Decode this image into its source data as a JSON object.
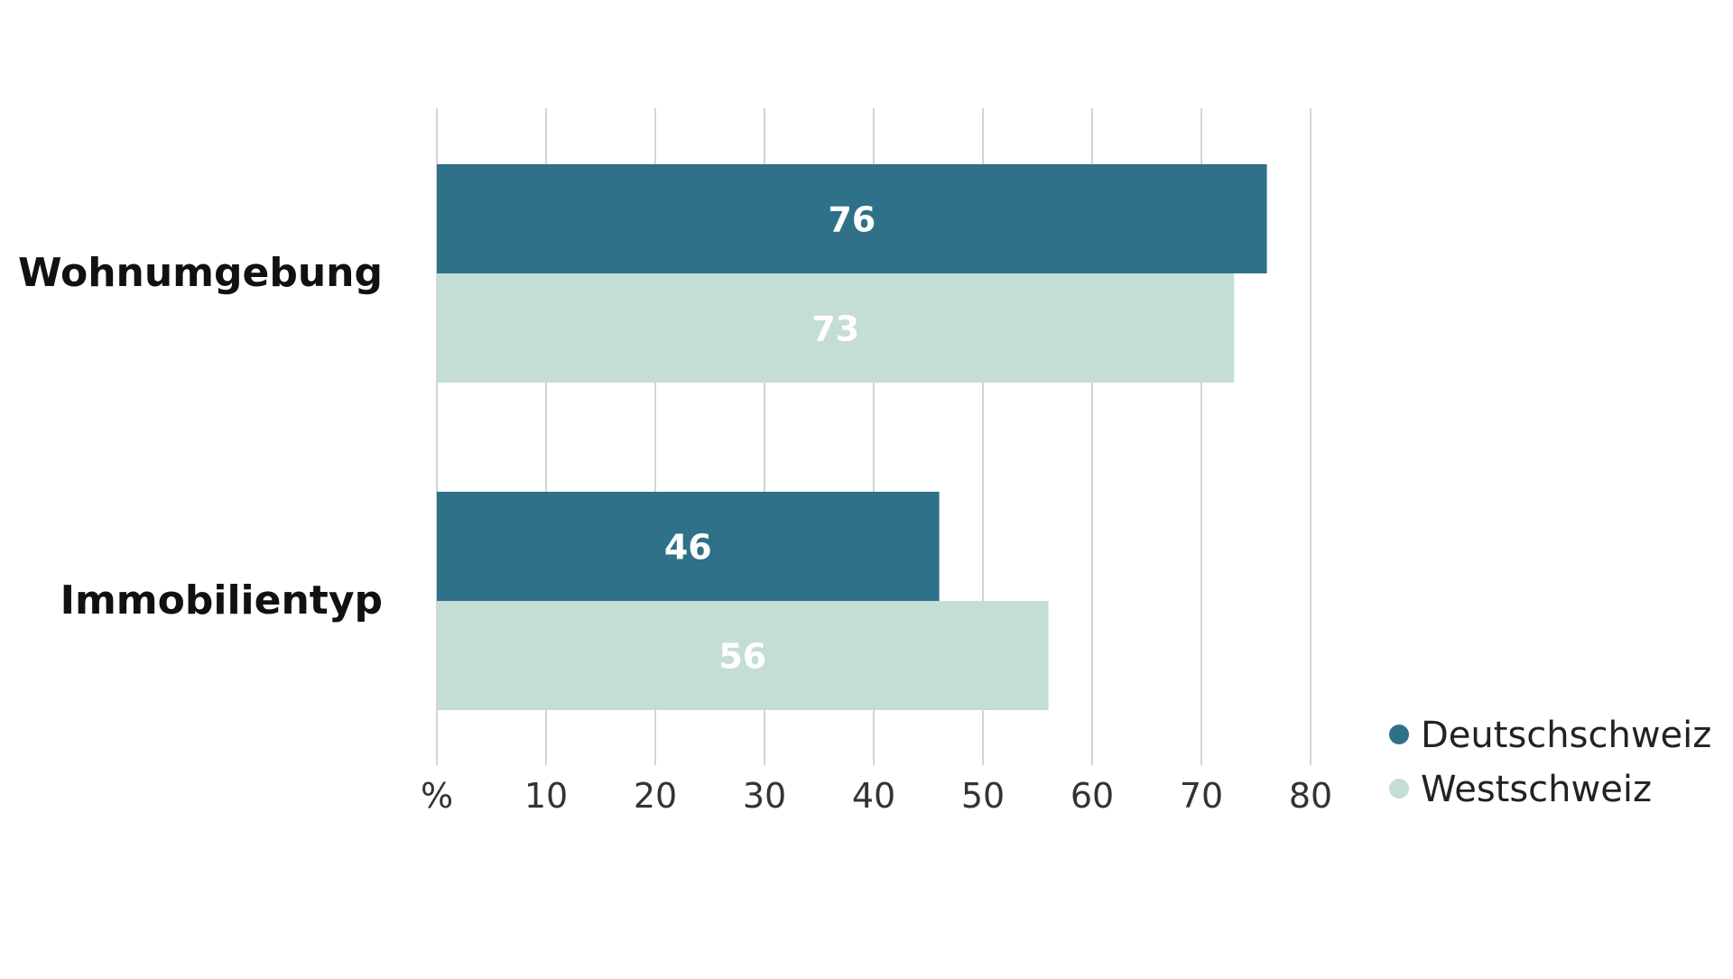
{
  "chart_data": {
    "type": "bar",
    "orientation": "horizontal",
    "categories": [
      "Wohnumgebung",
      "Immobilientyp"
    ],
    "series": [
      {
        "name": "Deutschschweiz",
        "values": [
          76,
          46
        ],
        "color": "#2f7189"
      },
      {
        "name": "Westschweiz",
        "values": [
          73,
          56
        ],
        "color": "#c5ddd7"
      }
    ],
    "x_ticks": [
      "%",
      "10",
      "20",
      "30",
      "40",
      "50",
      "60",
      "70",
      "80"
    ],
    "xlim": [
      0,
      80
    ],
    "grid": true,
    "grid_color": "#d4d4d4",
    "legend_position": "bottom-right",
    "data_labels": true
  }
}
